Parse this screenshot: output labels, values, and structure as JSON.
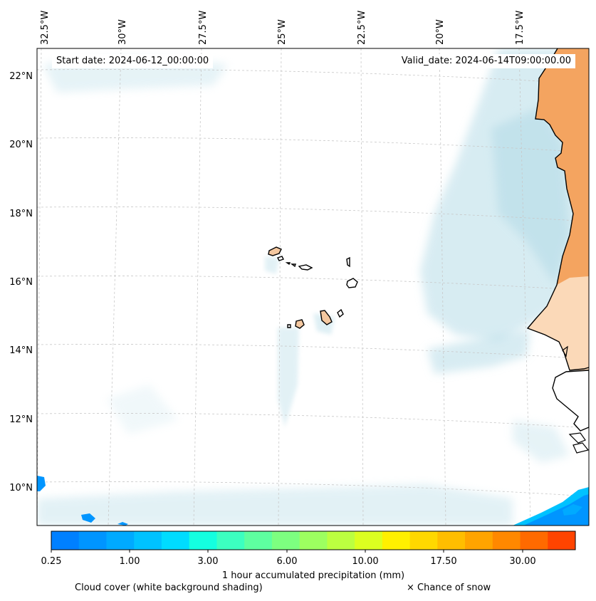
{
  "header": {
    "start_date": "Start date: 2024-06-12_00:00:00",
    "valid_date": "Valid_date: 2024-06-14T09:00:00.00"
  },
  "longitude_labels": [
    "32.5°W",
    "30°W",
    "27.5°W",
    "25°W",
    "22.5°W",
    "20°W",
    "17.5°W"
  ],
  "latitude_labels": [
    "22°N",
    "20°N",
    "18°N",
    "16°N",
    "14°N",
    "12°N",
    "10°N"
  ],
  "colorbar": {
    "title": "1 hour accumulated precipitation (mm)",
    "tick_labels": [
      "0.25",
      "1.00",
      "3.00",
      "6.00",
      "10.00",
      "17.50",
      "30.00"
    ],
    "colors": [
      "#0080ff",
      "#0095ff",
      "#00aaff",
      "#00c2ff",
      "#00dcff",
      "#14ffe0",
      "#3cffc0",
      "#5effa0",
      "#7dff80",
      "#9dff60",
      "#bcff40",
      "#dcff20",
      "#fff000",
      "#ffd800",
      "#ffbe00",
      "#ffa400",
      "#ff8800",
      "#ff6a00",
      "#ff4400"
    ]
  },
  "legend": {
    "cloud_cover": "Cloud cover (white background shading)",
    "snow": "× Chance of snow"
  },
  "colors": {
    "land": "#f4a460",
    "land_light": "#fbd9b8",
    "cloud": "#b8dde8",
    "grid": "#c8c8c8"
  }
}
